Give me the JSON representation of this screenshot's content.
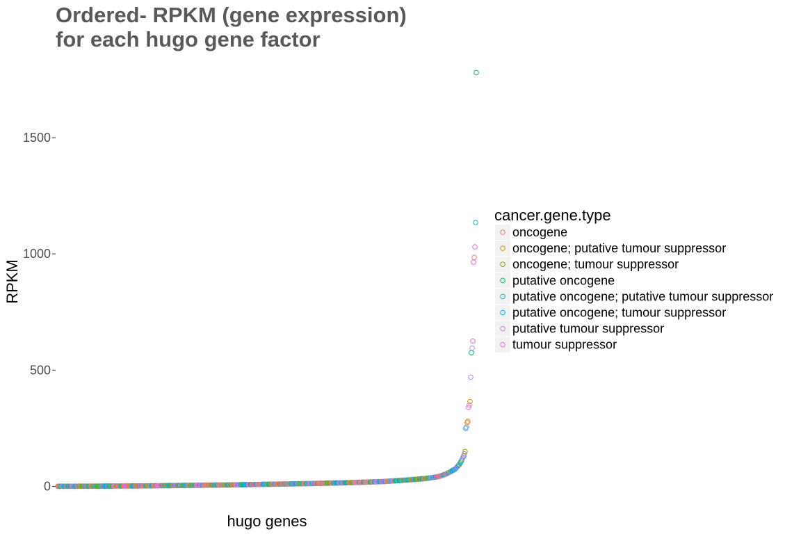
{
  "chart_data": {
    "type": "scatter",
    "title_lines": [
      "Ordered- RPKM (gene expression)",
      "for each hugo gene factor"
    ],
    "xlabel": "hugo genes",
    "ylabel": "RPKM",
    "x_ticks_shown": false,
    "y_ticks": [
      0,
      500,
      1000,
      1500
    ],
    "ylim": [
      -10,
      1820
    ],
    "grid": false,
    "point_shape": "open circle",
    "x_order": "genes sorted ascending by RPKM",
    "legend": {
      "title": "cancer.gene.type",
      "position": "right",
      "entries": [
        {
          "label": "oncogene",
          "color": "#F8766D"
        },
        {
          "label": "oncogene; putative tumour suppressor",
          "color": "#CD9600"
        },
        {
          "label": "oncogene; tumour suppressor",
          "color": "#7CAE00"
        },
        {
          "label": "putative oncogene",
          "color": "#00BE67"
        },
        {
          "label": "putative oncogene; putative tumour suppressor",
          "color": "#00BFC4"
        },
        {
          "label": "putative oncogene; tumour suppressor",
          "color": "#00A9FF"
        },
        {
          "label": "putative tumour suppressor",
          "color": "#C77CFF"
        },
        {
          "label": "tumour suppressor",
          "color": "#FF61CC"
        }
      ]
    },
    "approx_gene_count": 600,
    "curve_profile": [
      [
        0.0,
        0.5
      ],
      [
        0.1,
        1
      ],
      [
        0.2,
        2
      ],
      [
        0.3,
        4
      ],
      [
        0.4,
        6
      ],
      [
        0.5,
        9
      ],
      [
        0.6,
        12
      ],
      [
        0.7,
        16
      ],
      [
        0.78,
        21
      ],
      [
        0.84,
        28
      ],
      [
        0.88,
        34
      ],
      [
        0.91,
        42
      ],
      [
        0.93,
        55
      ],
      [
        0.95,
        75
      ],
      [
        0.96,
        95
      ],
      [
        0.97,
        130
      ],
      [
        0.98,
        190
      ],
      [
        0.99,
        260
      ]
    ],
    "outliers": [
      {
        "value": 1780,
        "type": "putative oncogene"
      },
      {
        "value": 1135,
        "type": "putative oncogene; putative tumour suppressor"
      },
      {
        "value": 1030,
        "type": "tumour suppressor"
      },
      {
        "value": 985,
        "type": "oncogene"
      },
      {
        "value": 965,
        "type": "tumour suppressor"
      },
      {
        "value": 625,
        "type": "tumour suppressor"
      },
      {
        "value": 595,
        "type": "putative tumour suppressor"
      },
      {
        "value": 575,
        "type": "putative oncogene"
      },
      {
        "value": 470,
        "type": "putative tumour suppressor"
      },
      {
        "value": 365,
        "type": "oncogene; putative tumour suppressor"
      },
      {
        "value": 350,
        "type": "putative tumour suppressor"
      },
      {
        "value": 340,
        "type": "tumour suppressor"
      },
      {
        "value": 280,
        "type": "oncogene"
      },
      {
        "value": 275,
        "type": "oncogene; putative tumour suppressor"
      },
      {
        "value": 255,
        "type": "putative tumour suppressor"
      },
      {
        "value": 250,
        "type": "putative oncogene; tumour suppressor"
      }
    ]
  }
}
